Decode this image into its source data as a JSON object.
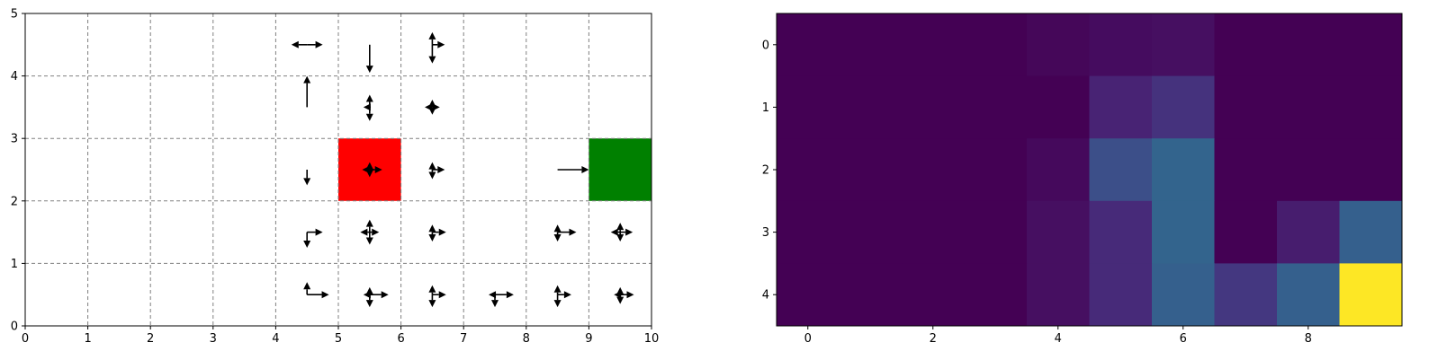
{
  "chart_data": [
    {
      "type": "quiver-grid",
      "title": "",
      "xlabel": "",
      "ylabel": "",
      "xlim": [
        0,
        10
      ],
      "ylim": [
        0,
        5
      ],
      "xticks": [
        "0",
        "1",
        "2",
        "3",
        "4",
        "5",
        "6",
        "7",
        "8",
        "9",
        "10"
      ],
      "yticks": [
        "0",
        "1",
        "2",
        "3",
        "4",
        "5"
      ],
      "grid": true,
      "grid_style": "dashed",
      "cells": [
        {
          "x": 9,
          "y": 2,
          "color": "#008000",
          "meaning": "goal"
        },
        {
          "x": 5,
          "y": 2,
          "color": "#ff0000",
          "meaning": "start"
        }
      ],
      "arrows": [
        {
          "x": 4.5,
          "y": 4.5,
          "dx": 0.25,
          "dy": 0
        },
        {
          "x": 4.5,
          "y": 4.5,
          "dx": -0.25,
          "dy": 0
        },
        {
          "x": 5.5,
          "y": 4.5,
          "dx": 0,
          "dy": -0.45
        },
        {
          "x": 6.5,
          "y": 4.5,
          "dx": 0,
          "dy": 0.2
        },
        {
          "x": 6.5,
          "y": 4.5,
          "dx": 0,
          "dy": -0.3
        },
        {
          "x": 6.5,
          "y": 4.5,
          "dx": 0.2,
          "dy": 0
        },
        {
          "x": 4.5,
          "y": 3.5,
          "dx": 0,
          "dy": 0.5
        },
        {
          "x": 5.5,
          "y": 3.5,
          "dx": 0,
          "dy": 0.2
        },
        {
          "x": 5.5,
          "y": 3.5,
          "dx": 0,
          "dy": -0.22
        },
        {
          "x": 5.5,
          "y": 3.5,
          "dx": -0.1,
          "dy": 0
        },
        {
          "x": 6.5,
          "y": 3.5,
          "dx": 0,
          "dy": 0.12
        },
        {
          "x": 6.5,
          "y": 3.5,
          "dx": 0,
          "dy": -0.12
        },
        {
          "x": 6.5,
          "y": 3.5,
          "dx": 0.12,
          "dy": 0
        },
        {
          "x": 6.5,
          "y": 3.5,
          "dx": -0.12,
          "dy": 0
        },
        {
          "x": 4.5,
          "y": 2.5,
          "dx": 0,
          "dy": -0.25
        },
        {
          "x": 5.5,
          "y": 2.5,
          "dx": 0,
          "dy": 0.12
        },
        {
          "x": 5.5,
          "y": 2.5,
          "dx": 0,
          "dy": -0.12
        },
        {
          "x": 5.5,
          "y": 2.5,
          "dx": 0.2,
          "dy": 0
        },
        {
          "x": 5.5,
          "y": 2.5,
          "dx": -0.12,
          "dy": 0
        },
        {
          "x": 6.5,
          "y": 2.5,
          "dx": 0,
          "dy": 0.12
        },
        {
          "x": 6.5,
          "y": 2.5,
          "dx": 0,
          "dy": -0.15
        },
        {
          "x": 6.5,
          "y": 2.5,
          "dx": 0.2,
          "dy": 0
        },
        {
          "x": 8.5,
          "y": 2.5,
          "dx": 0.5,
          "dy": 0
        },
        {
          "x": 4.5,
          "y": 1.5,
          "dx": 0,
          "dy": -0.25
        },
        {
          "x": 4.5,
          "y": 1.5,
          "dx": 0.25,
          "dy": 0
        },
        {
          "x": 5.5,
          "y": 1.5,
          "dx": 0,
          "dy": 0.2
        },
        {
          "x": 5.5,
          "y": 1.5,
          "dx": 0,
          "dy": -0.2
        },
        {
          "x": 5.5,
          "y": 1.5,
          "dx": 0.15,
          "dy": 0
        },
        {
          "x": 5.5,
          "y": 1.5,
          "dx": -0.15,
          "dy": 0
        },
        {
          "x": 6.5,
          "y": 1.5,
          "dx": 0,
          "dy": 0.12
        },
        {
          "x": 6.5,
          "y": 1.5,
          "dx": 0,
          "dy": -0.15
        },
        {
          "x": 6.5,
          "y": 1.5,
          "dx": 0.22,
          "dy": 0
        },
        {
          "x": 8.5,
          "y": 1.5,
          "dx": 0,
          "dy": 0.12
        },
        {
          "x": 8.5,
          "y": 1.5,
          "dx": 0,
          "dy": -0.15
        },
        {
          "x": 8.5,
          "y": 1.5,
          "dx": 0.3,
          "dy": 0
        },
        {
          "x": 9.5,
          "y": 1.5,
          "dx": 0,
          "dy": 0.15
        },
        {
          "x": 9.5,
          "y": 1.5,
          "dx": 0,
          "dy": -0.15
        },
        {
          "x": 9.5,
          "y": 1.5,
          "dx": 0.2,
          "dy": 0
        },
        {
          "x": 9.5,
          "y": 1.5,
          "dx": -0.15,
          "dy": 0
        },
        {
          "x": 4.5,
          "y": 0.5,
          "dx": 0,
          "dy": 0.2
        },
        {
          "x": 4.5,
          "y": 0.5,
          "dx": 0.35,
          "dy": 0
        },
        {
          "x": 5.5,
          "y": 0.5,
          "dx": 0,
          "dy": 0.12
        },
        {
          "x": 5.5,
          "y": 0.5,
          "dx": 0,
          "dy": -0.2
        },
        {
          "x": 5.5,
          "y": 0.5,
          "dx": 0.3,
          "dy": 0
        },
        {
          "x": 5.5,
          "y": 0.5,
          "dx": -0.1,
          "dy": 0
        },
        {
          "x": 6.5,
          "y": 0.5,
          "dx": 0,
          "dy": 0.15
        },
        {
          "x": 6.5,
          "y": 0.5,
          "dx": 0,
          "dy": -0.2
        },
        {
          "x": 6.5,
          "y": 0.5,
          "dx": 0.22,
          "dy": 0
        },
        {
          "x": 7.5,
          "y": 0.5,
          "dx": 0,
          "dy": -0.2
        },
        {
          "x": 7.5,
          "y": 0.5,
          "dx": 0.3,
          "dy": 0
        },
        {
          "x": 7.5,
          "y": 0.5,
          "dx": -0.1,
          "dy": 0
        },
        {
          "x": 8.5,
          "y": 0.5,
          "dx": 0,
          "dy": 0.15
        },
        {
          "x": 8.5,
          "y": 0.5,
          "dx": 0,
          "dy": -0.2
        },
        {
          "x": 8.5,
          "y": 0.5,
          "dx": 0.22,
          "dy": 0
        },
        {
          "x": 9.5,
          "y": 0.5,
          "dx": 0,
          "dy": 0.12
        },
        {
          "x": 9.5,
          "y": 0.5,
          "dx": 0,
          "dy": -0.15
        },
        {
          "x": 9.5,
          "y": 0.5,
          "dx": 0.22,
          "dy": 0
        },
        {
          "x": 9.5,
          "y": 0.5,
          "dx": -0.1,
          "dy": 0
        }
      ]
    },
    {
      "type": "heatmap",
      "title": "",
      "xlabel": "",
      "ylabel": "",
      "colormap": "viridis",
      "rows": [
        0,
        1,
        2,
        3,
        4
      ],
      "cols": [
        0,
        1,
        2,
        3,
        4,
        5,
        6,
        7,
        8,
        9
      ],
      "xticks": [
        "0",
        "2",
        "4",
        "6",
        "8"
      ],
      "yticks": [
        "0",
        "1",
        "2",
        "3",
        "4"
      ],
      "vmin": 0,
      "vmax": 1,
      "values": [
        [
          0,
          0,
          0,
          0,
          0.02,
          0.04,
          0.05,
          0,
          0,
          0
        ],
        [
          0,
          0,
          0,
          0,
          0,
          0.12,
          0.18,
          0,
          0,
          0
        ],
        [
          0,
          0,
          0,
          0,
          0.03,
          0.3,
          0.4,
          0,
          0,
          0
        ],
        [
          0,
          0,
          0,
          0,
          0.05,
          0.15,
          0.4,
          0,
          0.1,
          0.38
        ],
        [
          0,
          0,
          0,
          0,
          0.05,
          0.15,
          0.38,
          0.2,
          0.38,
          1.0
        ]
      ]
    }
  ]
}
